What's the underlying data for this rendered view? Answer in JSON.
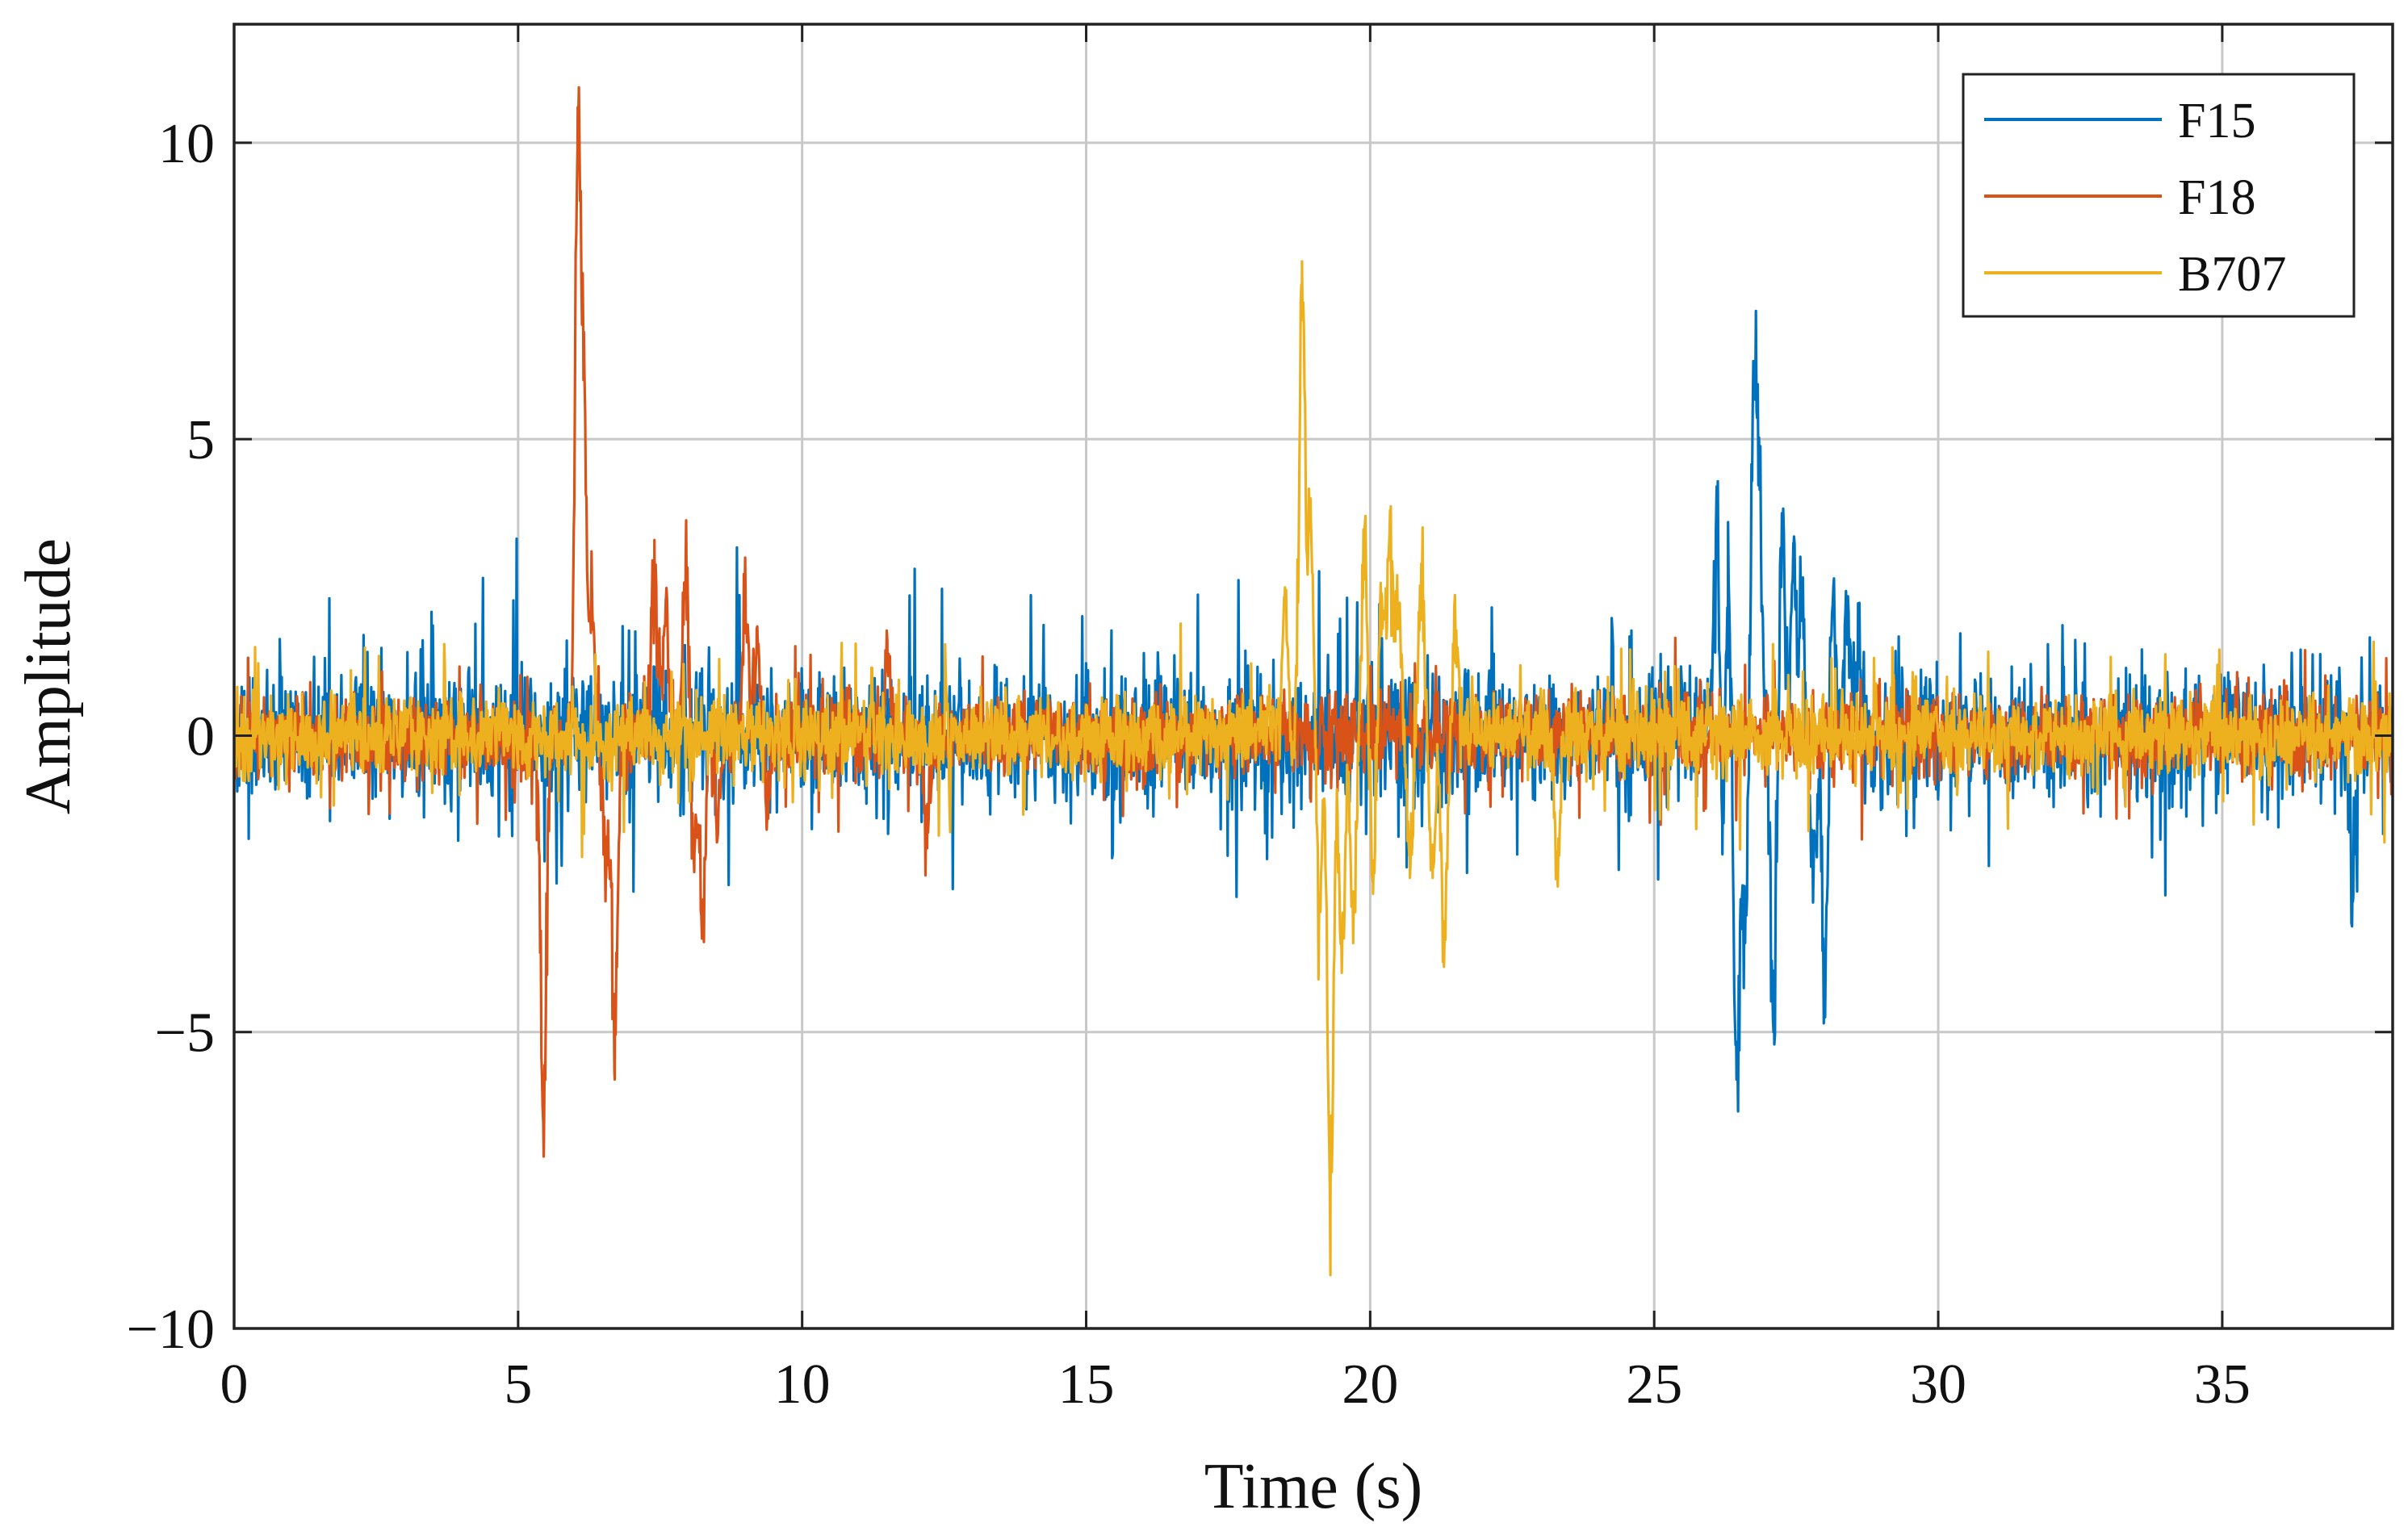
{
  "chart_data": {
    "type": "line",
    "title": "",
    "xlabel": "Time (s)",
    "ylabel": "Amplitude",
    "xlim": [
      0,
      38
    ],
    "ylim": [
      -10,
      12
    ],
    "xticks": [
      0,
      5,
      10,
      15,
      20,
      25,
      30,
      35
    ],
    "xtick_labels": [
      "0",
      "5",
      "10",
      "15",
      "20",
      "25",
      "30",
      "35"
    ],
    "yticks": [
      -10,
      -5,
      0,
      5,
      10
    ],
    "ytick_labels": [
      "−10",
      "−5",
      "0",
      "5",
      "10"
    ],
    "grid": true,
    "legend": {
      "position": "top-right",
      "entries": [
        "F15",
        "F18",
        "B707"
      ]
    },
    "noise_baseline": {
      "F15_amplitude": 1.0,
      "F18_amplitude": 0.6,
      "B707_amplitude": 0.6
    },
    "series": [
      {
        "name": "F15",
        "color": "#0072BD",
        "events": [
          {
            "t": 26.1,
            "v": 4.2
          },
          {
            "t": 26.2,
            "v": -2.0
          },
          {
            "t": 26.3,
            "v": 3.6
          },
          {
            "t": 26.45,
            "v": -5.8
          },
          {
            "t": 26.6,
            "v": -3.5
          },
          {
            "t": 26.75,
            "v": 5.8
          },
          {
            "t": 26.85,
            "v": 4.6
          },
          {
            "t": 27.1,
            "v": -5.0
          },
          {
            "t": 27.25,
            "v": 3.6
          },
          {
            "t": 27.45,
            "v": 3.1
          },
          {
            "t": 27.6,
            "v": 2.6
          },
          {
            "t": 27.8,
            "v": -2.6
          },
          {
            "t": 28.0,
            "v": -4.6
          },
          {
            "t": 28.15,
            "v": 2.4
          },
          {
            "t": 28.4,
            "v": 1.9
          },
          {
            "t": 28.6,
            "v": 2.0
          },
          {
            "t": 37.3,
            "v": -2.8
          }
        ]
      },
      {
        "name": "F18",
        "color": "#D95319",
        "events": [
          {
            "t": 5.45,
            "v": -7.1
          },
          {
            "t": 6.05,
            "v": 10.6
          },
          {
            "t": 6.15,
            "v": 6.0
          },
          {
            "t": 6.3,
            "v": 2.5
          },
          {
            "t": 6.55,
            "v": -2.4
          },
          {
            "t": 6.7,
            "v": -5.8
          },
          {
            "t": 7.4,
            "v": 3.3
          },
          {
            "t": 7.6,
            "v": 2.3
          },
          {
            "t": 7.95,
            "v": 2.9
          },
          {
            "t": 8.1,
            "v": -2.3
          },
          {
            "t": 8.25,
            "v": -3.4
          },
          {
            "t": 8.5,
            "v": -1.8
          },
          {
            "t": 9.0,
            "v": 2.7
          },
          {
            "t": 9.2,
            "v": 1.8
          },
          {
            "t": 9.4,
            "v": -1.4
          },
          {
            "t": 11.5,
            "v": 1.6
          },
          {
            "t": 12.2,
            "v": -1.9
          }
        ]
      },
      {
        "name": "B707",
        "color": "#EDB120",
        "events": [
          {
            "t": 18.5,
            "v": 2.5
          },
          {
            "t": 18.8,
            "v": 8.0
          },
          {
            "t": 18.95,
            "v": 4.0
          },
          {
            "t": 19.1,
            "v": -3.0
          },
          {
            "t": 19.3,
            "v": -9.1
          },
          {
            "t": 19.5,
            "v": -4.0
          },
          {
            "t": 19.7,
            "v": -3.5
          },
          {
            "t": 19.9,
            "v": 3.5
          },
          {
            "t": 20.05,
            "v": -2.5
          },
          {
            "t": 20.2,
            "v": 2.4
          },
          {
            "t": 20.35,
            "v": 3.8
          },
          {
            "t": 20.5,
            "v": 2.2
          },
          {
            "t": 20.7,
            "v": -2.4
          },
          {
            "t": 20.9,
            "v": 2.9
          },
          {
            "t": 21.1,
            "v": -2.4
          },
          {
            "t": 21.3,
            "v": -3.9
          },
          {
            "t": 21.5,
            "v": 1.8
          },
          {
            "t": 23.3,
            "v": -2.5
          }
        ]
      }
    ]
  }
}
